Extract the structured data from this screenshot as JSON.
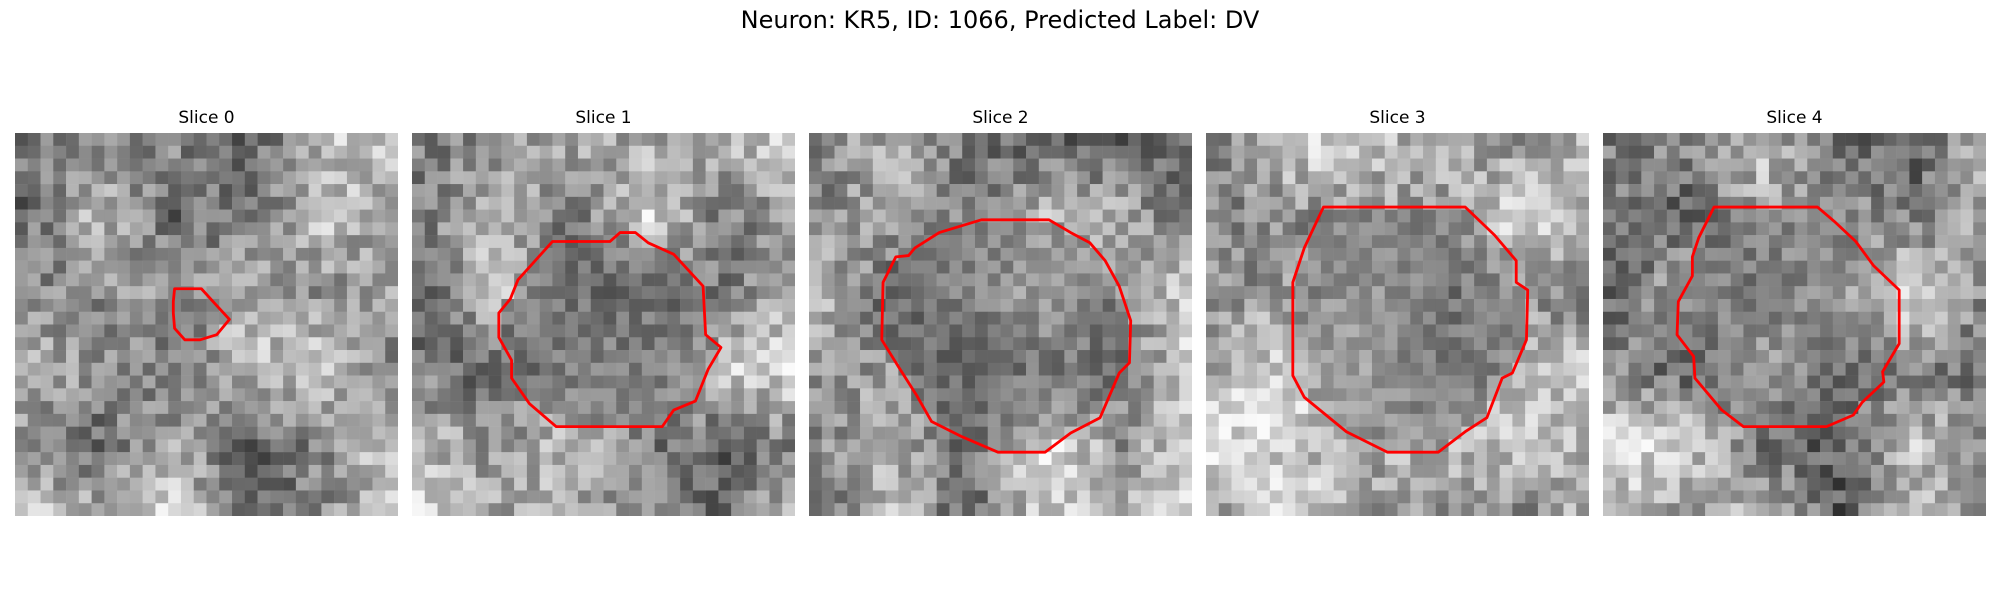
{
  "title": "Neuron: KR5, ID: 1066, Predicted Label: DV",
  "panels": [
    {
      "label": "Slice 0",
      "seed": 11,
      "shade_center": [
        5,
        4
      ],
      "contour_color": "#ff0000"
    },
    {
      "label": "Slice 1",
      "seed": 23,
      "shade_center": [
        5,
        5
      ],
      "contour_color": "#ff0000"
    },
    {
      "label": "Slice 2",
      "seed": 37,
      "shade_center": [
        3,
        3
      ],
      "contour_color": "#ff0000"
    },
    {
      "label": "Slice 3",
      "seed": 51,
      "shade_center": [
        6,
        6
      ],
      "contour_color": "#ff0000"
    },
    {
      "label": "Slice 4",
      "seed": 67,
      "shade_center": [
        4,
        4
      ],
      "contour_color": "#ff0000"
    }
  ],
  "colors": {
    "background": "#ffffff",
    "contour": "#ff0000"
  }
}
